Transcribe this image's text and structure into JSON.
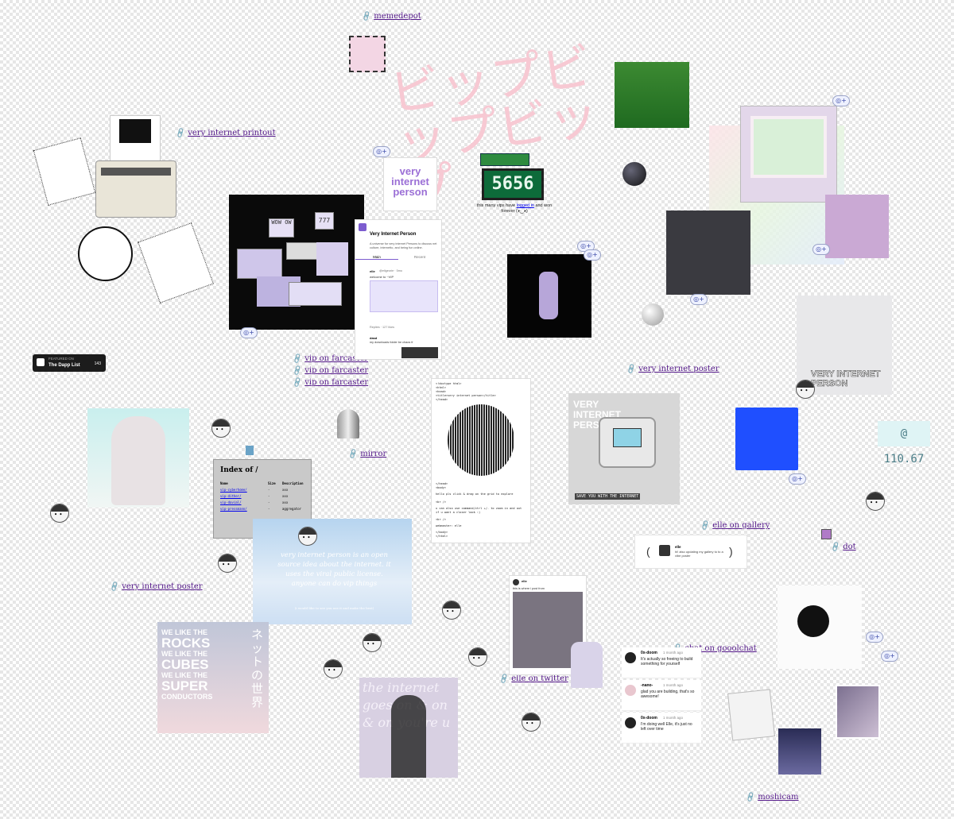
{
  "links": {
    "memedepot": "memedepot",
    "printout": "very internet printout",
    "farcaster1": "vip on farcaster",
    "farcaster2": "vip on farcaster",
    "farcaster3": "vip on farcaster",
    "poster_right": "very internet poster",
    "poster_left": "very internet poster",
    "mirror": "mirror",
    "gallery": "elle on gallery",
    "dot": "dot",
    "goolchat": "chat on gooolchat",
    "twitter": "elle on twitter",
    "moshicam": "moshicam"
  },
  "katakana_title": "ビップビップビップ",
  "counter": {
    "value": "5656",
    "caption_before": "this many vips have ",
    "caption_link": "logged in",
    "caption_after": " and won forever (◕‿◕)"
  },
  "badge_text": "very internet person",
  "pixel_window": {
    "wow": "WOW OW",
    "num": "777"
  },
  "dapp_badge": {
    "featured": "FEATURED ON",
    "name": "The Dapp List",
    "count": "143"
  },
  "profile_card": {
    "name": "Very Internet Person",
    "tagline": "A universe for very internet Persons to discuss net culture, internetto, and being fun online.",
    "tab_main": "Main",
    "tab_recent": "Recent",
    "post_user": "elle",
    "post_handle": "@ellgeorie · 5mo",
    "post_text": "welcome to ~VIP",
    "post_footer": "Replies · 127 likes",
    "reply_user": "dasd",
    "reply_text": "my downloads folder be chaos fr"
  },
  "index_listing": {
    "title": "Index of /",
    "headers": [
      "Name",
      "Size",
      "Description"
    ],
    "rows": [
      [
        "vip-cyberhome/",
        "-",
        "xxx"
      ],
      [
        "vip-dither/",
        "-",
        "xxx"
      ],
      [
        "vip-davial/",
        "-",
        "xxx"
      ],
      [
        "vip-pressmann/",
        "-",
        "aggregator"
      ]
    ]
  },
  "cloud_text": {
    "body": "very internet person is an open source idea about the internet. it uses the viral public license. anyone can do vip things",
    "footer": "(i would like to see you use it and make the best)"
  },
  "source_card": {
    "top": "<!doctype html>\n<html>\n<head>\n<title>very internet person</title>\n</head>",
    "mid": "</head>\n<body>",
    "line1": "hello pls click & drag on the grid to explore",
    "line2": "<br />",
    "line3": "u can also use command/ctrl +/- to zoom in and out if u want a closer look :)",
    "line4": "<br />",
    "line5": "webmaster: elle",
    "end": "</body>\n</html>"
  },
  "vip_machine": {
    "title": "VERY INTERNET PERSON",
    "footer": "SAVE YOU WITH THE INTERNET"
  },
  "poster_right_text": "VERY INTERNET PERSON",
  "clock_text": "@ 110.67",
  "gallery_chat": {
    "user": "elle",
    "text": "hi! also updating my gallery to to a vibe poster"
  },
  "rocks_poster": {
    "lines": [
      "WE LIKE THE",
      "ROCKS",
      "WE LIKE THE",
      "CUBES",
      "WE LIKE THE",
      "SUPER",
      "CONDUCTORS"
    ],
    "side": "ネットの世界"
  },
  "internet_poster": {
    "text": "the internet goes on & on & on you're u"
  },
  "chat_thread": [
    {
      "user": "0x-doom",
      "time": "1 month ago",
      "text": "It's actually so freeing to build something for yourself"
    },
    {
      "user": "-nano-",
      "time": "1 month ago",
      "text": "glad you are building, that's so awesome!"
    },
    {
      "user": "0x-doom",
      "time": "1 month ago",
      "text": "I'm doing well Elle, it's just no left over time"
    }
  ],
  "tweet_card": {
    "name": "elle",
    "text": "this is where i post from"
  },
  "chip_label": "◎+",
  "colors": {
    "katakana": "#f7c9d3",
    "counter_bg": "#0d6b3a",
    "counter_text": "#e9f7ee",
    "blue_square": "#1f4fff",
    "link": "#551a8b"
  }
}
